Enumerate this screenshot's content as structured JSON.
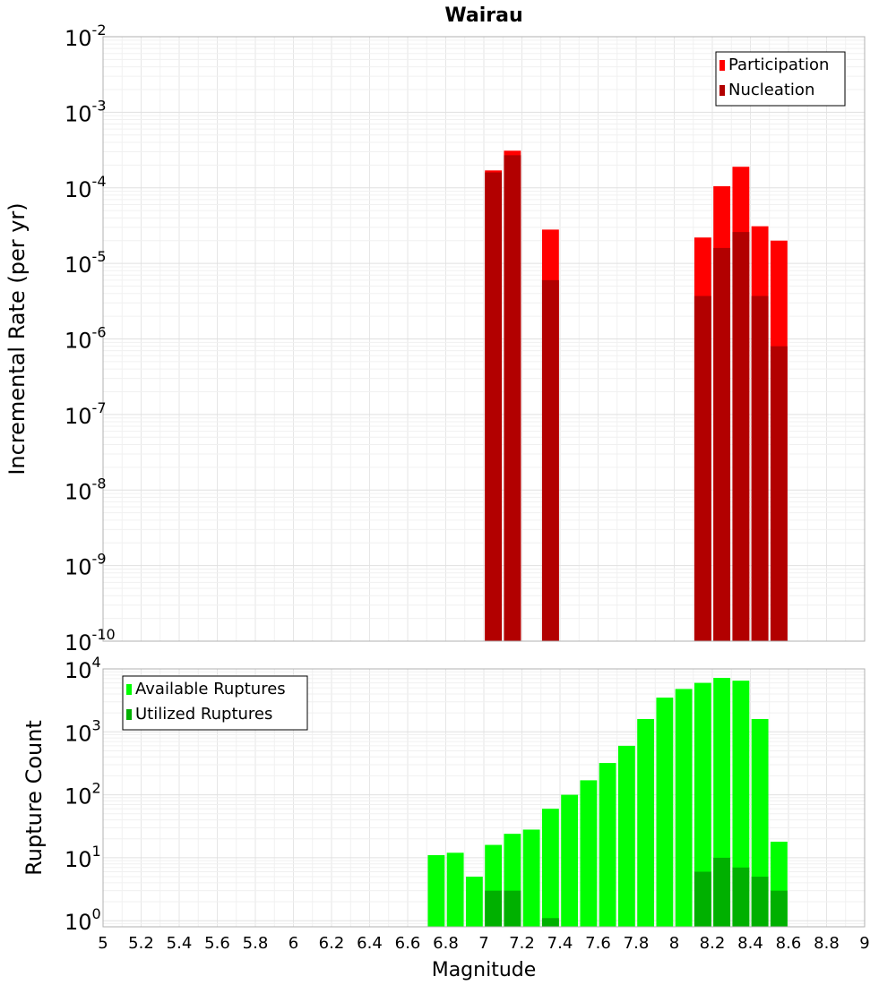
{
  "chart_data": [
    {
      "type": "bar",
      "title": "Wairau",
      "xlabel": "",
      "ylabel": "Incremental Rate (per yr)",
      "yscale": "log",
      "ylim": [
        1e-10,
        0.01
      ],
      "xlim": [
        5,
        9
      ],
      "grid": true,
      "legend_position": "top-right",
      "y_tick_labels": [
        {
          "base": "10",
          "exp": "-10"
        },
        {
          "base": "10",
          "exp": "-9"
        },
        {
          "base": "10",
          "exp": "-8"
        },
        {
          "base": "10",
          "exp": "-7"
        },
        {
          "base": "10",
          "exp": "-6"
        },
        {
          "base": "10",
          "exp": "-5"
        },
        {
          "base": "10",
          "exp": "-4"
        },
        {
          "base": "10",
          "exp": "-3"
        },
        {
          "base": "10",
          "exp": "-2"
        }
      ],
      "series": [
        {
          "name": "Participation",
          "color": "#ff0000",
          "points": [
            {
              "x": 7.05,
              "y": 0.00017
            },
            {
              "x": 7.15,
              "y": 0.00031
            },
            {
              "x": 7.35,
              "y": 2.8e-05
            },
            {
              "x": 8.15,
              "y": 2.2e-05
            },
            {
              "x": 8.25,
              "y": 0.000105
            },
            {
              "x": 8.35,
              "y": 0.00019
            },
            {
              "x": 8.45,
              "y": 3.1e-05
            },
            {
              "x": 8.55,
              "y": 2e-05
            }
          ]
        },
        {
          "name": "Nucleation",
          "color": "#b20000",
          "points": [
            {
              "x": 7.05,
              "y": 0.00016
            },
            {
              "x": 7.15,
              "y": 0.00027
            },
            {
              "x": 7.35,
              "y": 6e-06
            },
            {
              "x": 8.15,
              "y": 3.7e-06
            },
            {
              "x": 8.25,
              "y": 1.6e-05
            },
            {
              "x": 8.35,
              "y": 2.6e-05
            },
            {
              "x": 8.45,
              "y": 3.7e-06
            },
            {
              "x": 8.55,
              "y": 8e-07
            }
          ]
        }
      ]
    },
    {
      "type": "bar",
      "title": "",
      "xlabel": "Magnitude",
      "ylabel": "Rupture Count",
      "yscale": "log",
      "ylim": [
        0.8,
        10000
      ],
      "xlim": [
        5,
        9
      ],
      "grid": true,
      "legend_position": "top-left",
      "x_tick_labels": [
        "5",
        "5.2",
        "5.4",
        "5.6",
        "5.8",
        "6",
        "6.2",
        "6.4",
        "6.6",
        "6.8",
        "7",
        "7.2",
        "7.4",
        "7.6",
        "7.8",
        "8",
        "8.2",
        "8.4",
        "8.6",
        "8.8",
        "9"
      ],
      "y_tick_labels": [
        {
          "base": "10",
          "exp": "0"
        },
        {
          "base": "10",
          "exp": "1"
        },
        {
          "base": "10",
          "exp": "2"
        },
        {
          "base": "10",
          "exp": "3"
        },
        {
          "base": "10",
          "exp": "4"
        }
      ],
      "series": [
        {
          "name": "Available Ruptures",
          "color": "#00ff00",
          "points": [
            {
              "x": 6.75,
              "y": 11
            },
            {
              "x": 6.85,
              "y": 12
            },
            {
              "x": 6.95,
              "y": 5
            },
            {
              "x": 7.05,
              "y": 16
            },
            {
              "x": 7.15,
              "y": 24
            },
            {
              "x": 7.25,
              "y": 28
            },
            {
              "x": 7.35,
              "y": 60
            },
            {
              "x": 7.45,
              "y": 100
            },
            {
              "x": 7.55,
              "y": 170
            },
            {
              "x": 7.65,
              "y": 320
            },
            {
              "x": 7.75,
              "y": 600
            },
            {
              "x": 7.85,
              "y": 1600
            },
            {
              "x": 7.95,
              "y": 3500
            },
            {
              "x": 8.05,
              "y": 4800
            },
            {
              "x": 8.15,
              "y": 6000
            },
            {
              "x": 8.25,
              "y": 7200
            },
            {
              "x": 8.35,
              "y": 6500
            },
            {
              "x": 8.45,
              "y": 1600
            },
            {
              "x": 8.55,
              "y": 18
            }
          ]
        },
        {
          "name": "Utilized Ruptures",
          "color": "#00b000",
          "points": [
            {
              "x": 7.05,
              "y": 3
            },
            {
              "x": 7.15,
              "y": 3
            },
            {
              "x": 7.35,
              "y": 1.1
            },
            {
              "x": 8.15,
              "y": 6
            },
            {
              "x": 8.25,
              "y": 10
            },
            {
              "x": 8.35,
              "y": 7
            },
            {
              "x": 8.45,
              "y": 5
            },
            {
              "x": 8.55,
              "y": 3
            }
          ]
        }
      ]
    }
  ]
}
